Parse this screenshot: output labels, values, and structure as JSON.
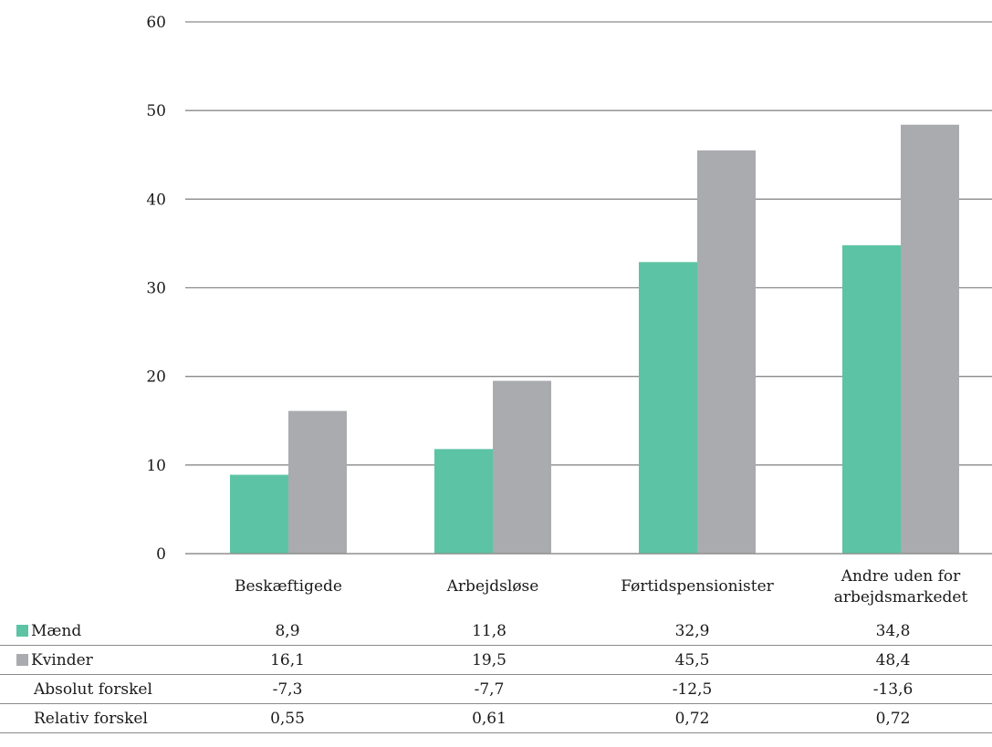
{
  "chart_data": {
    "type": "bar",
    "categories": [
      "Beskæftigede",
      "Arbejdsløse",
      "Førtidspensionister",
      "Andre uden for arbejdsmarkedet"
    ],
    "category_lines": [
      [
        "Beskæftigede"
      ],
      [
        "Arbejdsløse"
      ],
      [
        "Førtidspensionister"
      ],
      [
        "Andre uden for",
        "arbejdsmarkedet"
      ]
    ],
    "series": [
      {
        "name": "Mænd",
        "values": [
          8.9,
          11.8,
          32.9,
          34.8
        ],
        "color": "#5cc4a4"
      },
      {
        "name": "Kvinder",
        "values": [
          16.1,
          19.5,
          45.5,
          48.4
        ],
        "color": "#a9abae"
      }
    ],
    "ylim": [
      0,
      60
    ],
    "yticks": [
      0,
      10,
      20,
      30,
      40,
      50,
      60
    ],
    "grid": true,
    "legend": "data-table",
    "title": "",
    "xlabel": "",
    "ylabel": ""
  },
  "table": {
    "rows": [
      {
        "label": "Mænd",
        "swatch": "#5cc4a4",
        "values": [
          "8,9",
          "11,8",
          "32,9",
          "34,8"
        ]
      },
      {
        "label": "Kvinder",
        "swatch": "#a9abae",
        "values": [
          "16,1",
          "19,5",
          "45,5",
          "48,4"
        ]
      },
      {
        "label": "Absolut forskel",
        "swatch": null,
        "values": [
          "-7,3",
          "-7,7",
          "-12,5",
          "-13,6"
        ]
      },
      {
        "label": "Relativ forskel",
        "swatch": null,
        "values": [
          "0,55",
          "0,61",
          "0,72",
          "0,72"
        ]
      }
    ]
  }
}
